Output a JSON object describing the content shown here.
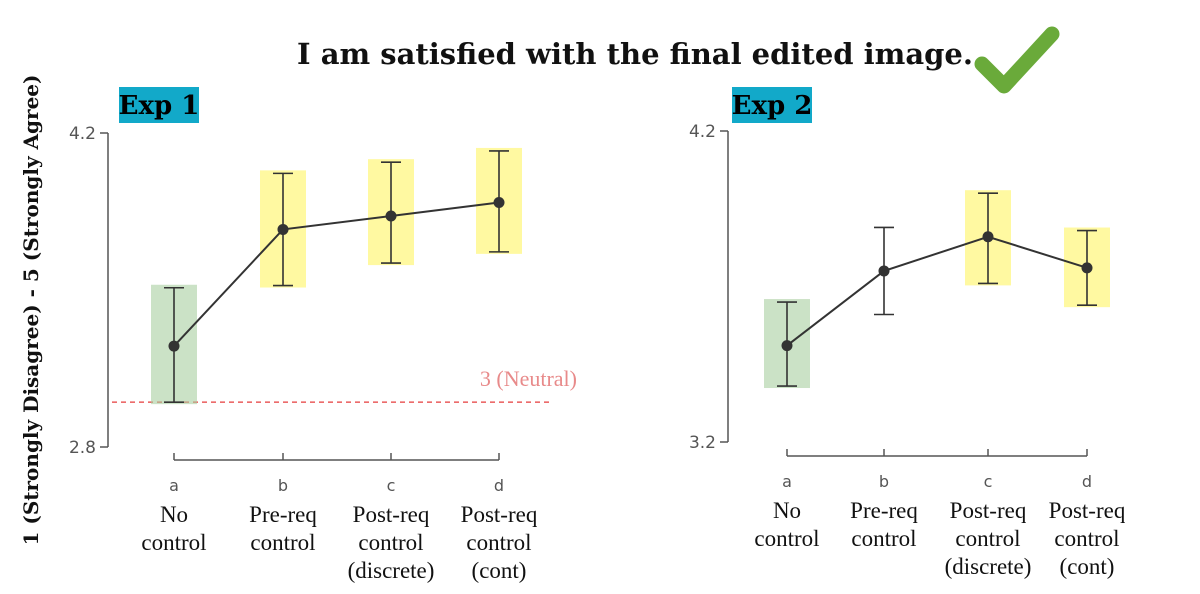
{
  "title": "I am satisfied with the final edited image.",
  "ylabel": "1 (Strongly Disagree) - 5 (Strongly Agree)",
  "colors": {
    "axis": "#555555",
    "line": "#333333",
    "point": "#333333",
    "highlight_green": "#a8cfa0",
    "highlight_yellow": "#fff66e",
    "exp_badge": "#12a9c9",
    "neutral": "#e63b3b",
    "check": "#6aaa3a"
  },
  "check_icon": "checkmark-icon",
  "chart_data": [
    {
      "type": "line",
      "panel_label": "Exp 1",
      "ylim": [
        2.8,
        4.2
      ],
      "yticks": [
        "4.2",
        "2.8"
      ],
      "categories": [
        "a",
        "b",
        "c",
        "d"
      ],
      "category_labels": [
        [
          "No",
          "control"
        ],
        [
          "Pre-req",
          "control"
        ],
        [
          "Post-req",
          "control",
          "(discrete)"
        ],
        [
          "Post-req",
          "control",
          "(cont)"
        ]
      ],
      "series": [
        {
          "values": [
            3.25,
            3.77,
            3.83,
            3.89
          ],
          "err_low": [
            3.0,
            3.52,
            3.62,
            3.67
          ],
          "err_high": [
            3.51,
            4.02,
            4.07,
            4.12
          ],
          "highlight": [
            "green",
            "yellow",
            "yellow",
            "yellow"
          ]
        }
      ],
      "reference_line": {
        "y": 3.0,
        "label": "3 (Neutral)"
      }
    },
    {
      "type": "line",
      "panel_label": "Exp 2",
      "ylim": [
        3.2,
        4.2
      ],
      "yticks": [
        "4.2",
        "3.2"
      ],
      "categories": [
        "a",
        "b",
        "c",
        "d"
      ],
      "category_labels": [
        [
          "No",
          "control"
        ],
        [
          "Pre-req",
          "control"
        ],
        [
          "Post-req",
          "control",
          "(discrete)"
        ],
        [
          "Post-req",
          "control",
          "(cont)"
        ]
      ],
      "series": [
        {
          "values": [
            3.51,
            3.75,
            3.86,
            3.76
          ],
          "err_low": [
            3.38,
            3.61,
            3.71,
            3.64
          ],
          "err_high": [
            3.65,
            3.89,
            4.0,
            3.88
          ],
          "highlight": [
            "green",
            "none",
            "yellow",
            "yellow"
          ]
        }
      ]
    }
  ]
}
